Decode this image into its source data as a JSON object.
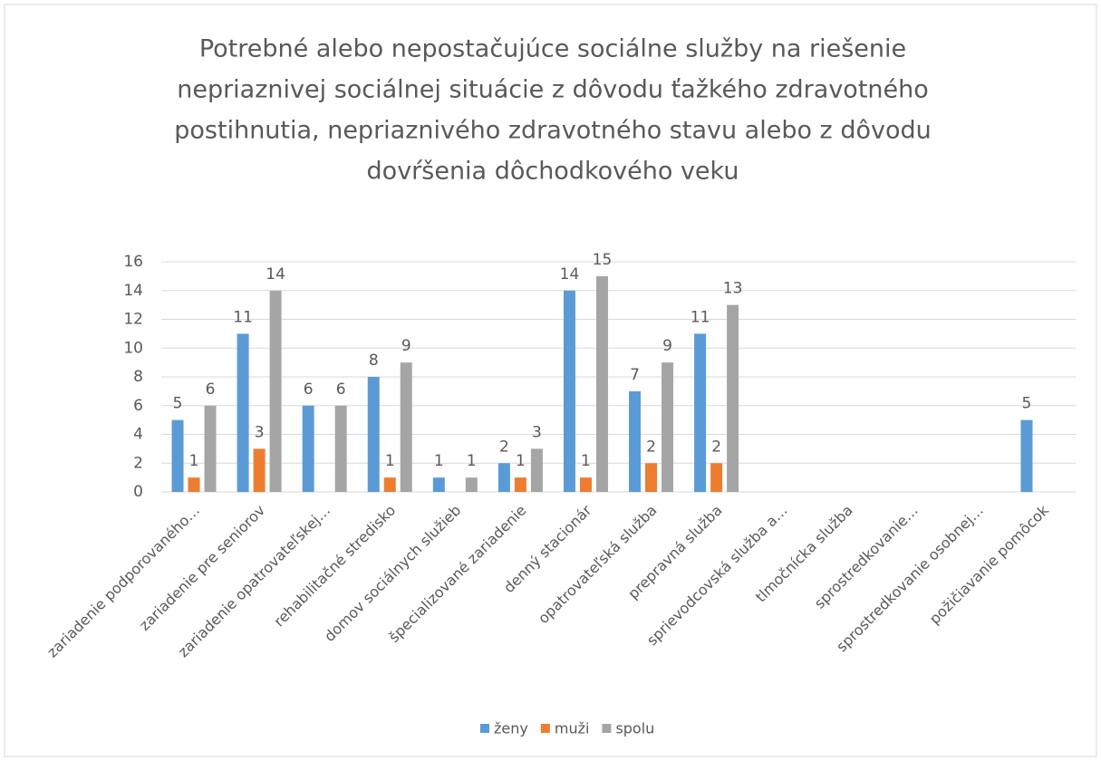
{
  "chart_data": {
    "type": "bar",
    "title": [
      "Potrebné alebo nepostačujúce sociálne služby na riešenie",
      "nepriaznivej sociálnej situácie z dôvodu ťažkého zdravotného",
      "postihnutia, nepriaznivého zdravotného stavu alebo z dôvodu",
      "dovŕšenia dôchodkového veku"
    ],
    "categories": [
      "zariadenie podporovaného…",
      "zariadenie pre seniorov",
      "zariadenie opatrovateľskej…",
      "rehabilitačné stredisko",
      "domov sociálnych služieb",
      "špecializované zariadenie",
      "denný stacionár",
      "opatrovateľská služba",
      "prepravná služba",
      "sprievodcovská služba a…",
      "tlmočnícka služba",
      "sprostredkovanie…",
      "sprostredkovanie osobnej…",
      "požičiavanie pomôcok"
    ],
    "series": [
      {
        "name": "ženy",
        "color": "#5b9bd5",
        "values": [
          5,
          11,
          6,
          8,
          1,
          2,
          14,
          7,
          11,
          null,
          null,
          null,
          null,
          5
        ]
      },
      {
        "name": "muži",
        "color": "#ed7d31",
        "values": [
          1,
          3,
          null,
          1,
          null,
          1,
          1,
          2,
          2,
          null,
          null,
          null,
          null,
          null
        ]
      },
      {
        "name": "spolu",
        "color": "#a5a5a5",
        "values": [
          6,
          14,
          6,
          9,
          1,
          3,
          15,
          9,
          13,
          null,
          null,
          null,
          null,
          null
        ]
      }
    ],
    "ylim": [
      0,
      16
    ],
    "yticks": [
      0,
      2,
      4,
      6,
      8,
      10,
      12,
      14,
      16
    ],
    "grid": true,
    "legend": "bottom"
  }
}
